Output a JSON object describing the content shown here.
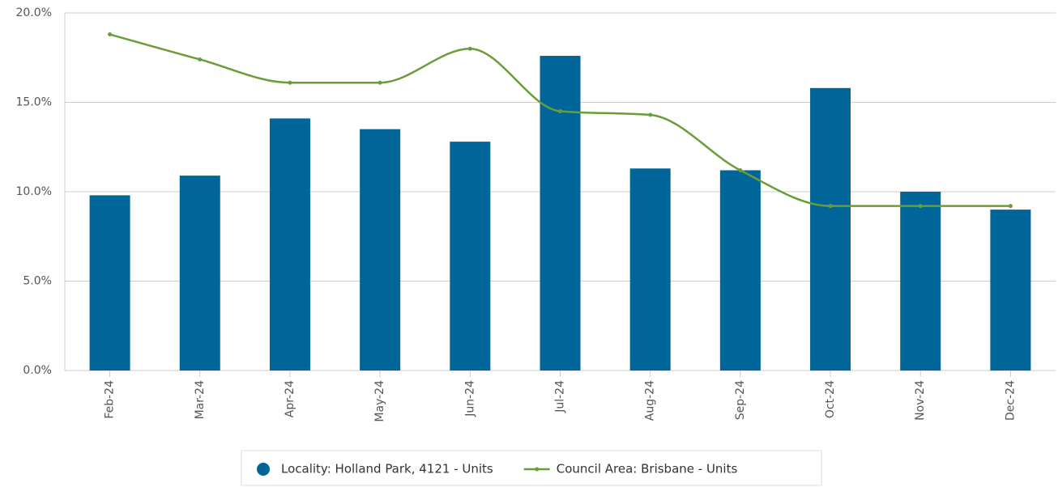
{
  "chart_data": {
    "type": "bar",
    "categories": [
      "Feb-24",
      "Mar-24",
      "Apr-24",
      "May-24",
      "Jun-24",
      "Jul-24",
      "Aug-24",
      "Sep-24",
      "Oct-24",
      "Nov-24",
      "Dec-24"
    ],
    "series": [
      {
        "name": "Locality: Holland Park, 4121 - Units",
        "color": "#006699",
        "type": "bar",
        "values": [
          9.8,
          10.9,
          14.1,
          13.5,
          12.8,
          17.6,
          11.3,
          11.2,
          15.8,
          10.0,
          9.0
        ]
      },
      {
        "name": "Council Area: Brisbane - Units",
        "color": "#6a9c3a",
        "type": "line",
        "values": [
          18.8,
          17.4,
          16.1,
          16.1,
          18.0,
          14.5,
          14.3,
          11.2,
          9.2,
          9.2,
          9.2
        ]
      }
    ],
    "ylim": [
      0,
      20
    ],
    "yticks": [
      {
        "value": 0,
        "label": "0.0%"
      },
      {
        "value": 5,
        "label": "5.0%"
      },
      {
        "value": 10,
        "label": "10.0%"
      },
      {
        "value": 15,
        "label": "15.0%"
      },
      {
        "value": 20,
        "label": "20.0%"
      }
    ],
    "grid": true,
    "legend": "bottom"
  }
}
